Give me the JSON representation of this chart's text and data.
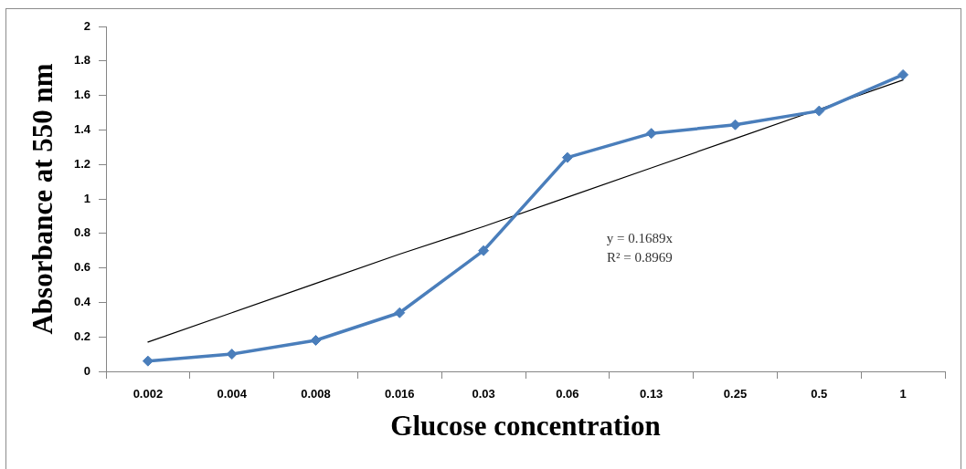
{
  "chart_data": {
    "type": "line",
    "xlabel": "Glucose concentration",
    "ylabel": "Absorbance at 550 nm",
    "categories": [
      "0.002",
      "0.004",
      "0.008",
      "0.016",
      "0.03",
      "0.06",
      "0.13",
      "0.25",
      "0.5",
      "1"
    ],
    "ylim": [
      0,
      2
    ],
    "yticks": [
      0,
      0.2,
      0.4,
      0.6,
      0.8,
      1,
      1.2,
      1.4,
      1.6,
      1.8,
      2
    ],
    "grid": false,
    "legend": false,
    "series": [
      {
        "color": "#4a7ebb",
        "marker": "diamond",
        "values": [
          0.06,
          0.1,
          0.18,
          0.34,
          0.7,
          1.24,
          1.38,
          1.43,
          1.51,
          1.72
        ]
      },
      {
        "type": "line",
        "color": "#000000",
        "marker": "none",
        "values": [
          0.17,
          0.34,
          0.51,
          0.68,
          0.84,
          1.01,
          1.18,
          1.35,
          1.52,
          1.69
        ]
      }
    ],
    "annotations": [
      "y = 0.1689x\nR² = 0.8969"
    ]
  }
}
